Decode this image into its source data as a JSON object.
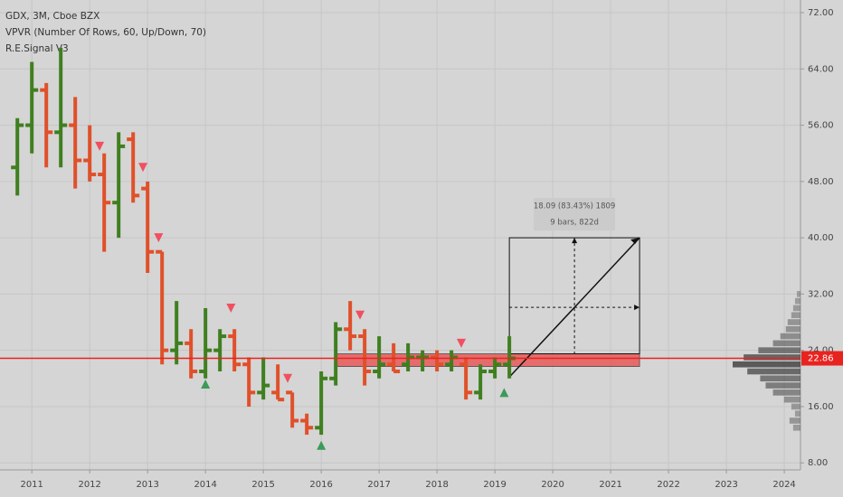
{
  "chart_data": {
    "type": "ohlc",
    "title": "GDX, 3M, Cboe BZX",
    "indicators": [
      "VPVR (Number Of Rows, 60, Up/Down, 70)",
      "R.E.Signal V3"
    ],
    "x": [
      2010.75,
      2011.0,
      2011.25,
      2011.5,
      2011.75,
      2012.0,
      2012.25,
      2012.5,
      2012.75,
      2013.0,
      2013.25,
      2013.5,
      2013.75,
      2014.0,
      2014.25,
      2014.5,
      2014.75,
      2015.0,
      2015.25,
      2015.5,
      2015.75,
      2016.0,
      2016.25,
      2016.5,
      2016.75,
      2017.0,
      2017.25,
      2017.5,
      2017.75,
      2018.0,
      2018.25,
      2018.5,
      2018.75,
      2019.0,
      2019.25
    ],
    "open": [
      50,
      56,
      61,
      55,
      56,
      51,
      49,
      45,
      54,
      47,
      38,
      24,
      25,
      21,
      24,
      26,
      22,
      18,
      18,
      18,
      14,
      13,
      20,
      27,
      26,
      21,
      22,
      22,
      23,
      23,
      22,
      22,
      18,
      21,
      22
    ],
    "high": [
      57,
      65,
      62,
      67,
      60,
      56,
      52,
      55,
      55,
      48,
      38,
      31,
      27,
      30,
      27,
      27,
      23,
      23,
      22,
      18,
      15,
      21,
      28,
      31,
      27,
      26,
      25,
      25,
      24,
      24,
      24,
      23,
      22,
      23,
      26
    ],
    "low": [
      46,
      52,
      50,
      50,
      47,
      48,
      38,
      40,
      45,
      35,
      22,
      22,
      20,
      20,
      21,
      21,
      16,
      17,
      17,
      13,
      12,
      12,
      19,
      24,
      19,
      20,
      21,
      21,
      21,
      21,
      21,
      17,
      17,
      20,
      20
    ],
    "close": [
      56,
      61,
      55,
      56,
      51,
      49,
      45,
      53,
      46,
      38,
      24,
      25,
      21,
      24,
      26,
      22,
      18,
      19,
      17,
      14,
      13,
      20,
      27,
      26,
      21,
      22,
      21,
      23,
      23,
      22,
      23,
      18,
      21,
      22,
      22.86
    ],
    "up_color": "#3f7f1f",
    "down_color": "#e0502a",
    "signals": {
      "x": [
        2012.17,
        2012.92,
        2013.19,
        2014.44,
        2015.42,
        2016.67,
        2018.42,
        2014.0,
        2016.0,
        2019.16
      ],
      "y": [
        53,
        50,
        40,
        30,
        20,
        29,
        25,
        19.2,
        10.5,
        18
      ],
      "direction": [
        "down",
        "down",
        "down",
        "down",
        "down",
        "down",
        "down",
        "up",
        "up",
        "up"
      ]
    },
    "volume_profile": {
      "prices": [
        13,
        14,
        15,
        16,
        17,
        18,
        19,
        20,
        21,
        22,
        23,
        24,
        25,
        26,
        27,
        28,
        29,
        30,
        31,
        32
      ],
      "volumes": [
        8,
        12,
        6,
        10,
        18,
        30,
        38,
        44,
        58,
        74,
        62,
        46,
        30,
        22,
        16,
        14,
        10,
        8,
        6,
        4
      ],
      "color": "#444444"
    },
    "last_price": 22.86,
    "last_price_color": "#e8231f",
    "zone": {
      "x0": 2016.25,
      "x1": 2021.5,
      "y0": 21.7,
      "y1": 23.5,
      "color": "#e85a5a"
    },
    "projection": {
      "x0": 2019.25,
      "x1": 2021.5,
      "y0": 20.2,
      "y1": 40,
      "label": "18.09 (83.43%) 1809",
      "sublabel": "9 bars, 822d"
    },
    "xlim": [
      2010.45,
      2024.28
    ],
    "ylim": [
      7,
      73.8
    ],
    "xticks": [
      2011,
      2012,
      2013,
      2014,
      2015,
      2016,
      2017,
      2018,
      2019,
      2020,
      2021,
      2022,
      2023,
      2024
    ],
    "yticks": [
      {
        "value": 8,
        "label": "8.00"
      },
      {
        "value": 16,
        "label": "16.00"
      },
      {
        "value": 24,
        "label": "24.00"
      },
      {
        "value": 32,
        "label": "32.00"
      },
      {
        "value": 40,
        "label": "40.00"
      },
      {
        "value": 48,
        "label": "48.00"
      },
      {
        "value": 56,
        "label": "56.00"
      },
      {
        "value": 64,
        "label": "64.00"
      },
      {
        "value": 72,
        "label": "72.00"
      }
    ],
    "grid": true
  }
}
